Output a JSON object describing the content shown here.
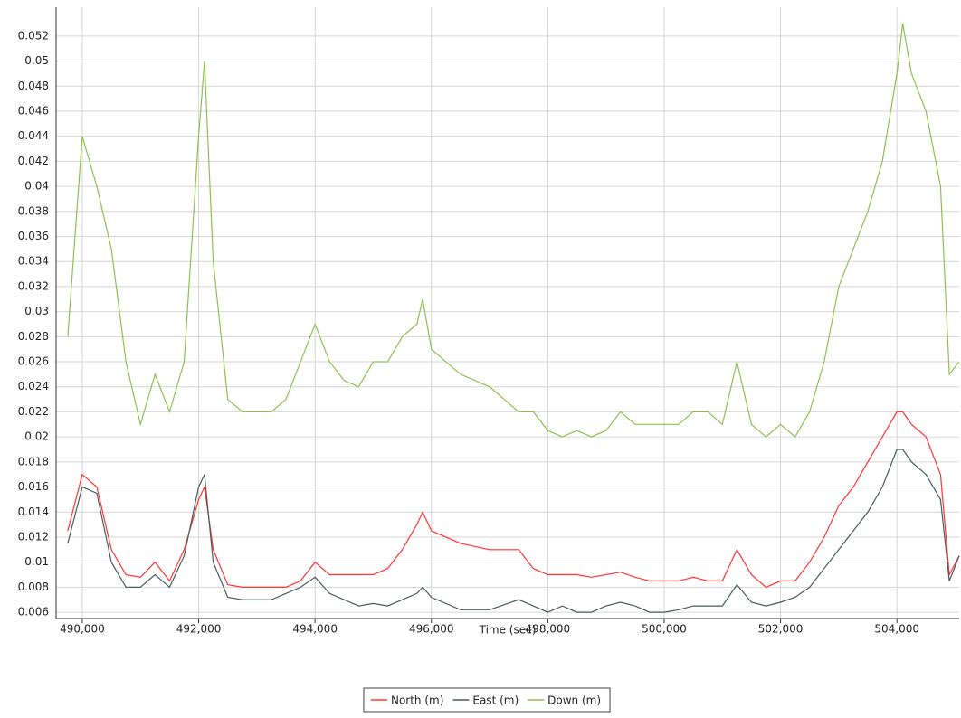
{
  "chart_data": {
    "type": "line",
    "x_label": "Time (sec)",
    "x": [
      489750,
      490000,
      490250,
      490500,
      490750,
      491000,
      491250,
      491500,
      491750,
      492000,
      492100,
      492250,
      492500,
      492750,
      493000,
      493250,
      493500,
      493750,
      494000,
      494250,
      494500,
      494750,
      495000,
      495250,
      495500,
      495750,
      495850,
      496000,
      496500,
      497000,
      497500,
      497750,
      498000,
      498250,
      498500,
      498750,
      499000,
      499250,
      499500,
      499750,
      500000,
      500250,
      500500,
      500750,
      501000,
      501250,
      501500,
      501750,
      502000,
      502250,
      502500,
      502750,
      503000,
      503250,
      503500,
      503750,
      504000,
      504100,
      504250,
      504500,
      504750,
      504900,
      505070
    ],
    "series": [
      {
        "name": "North (m)",
        "color": "#ff3333",
        "values": [
          0.0125,
          0.017,
          0.016,
          0.011,
          0.009,
          0.0088,
          0.01,
          0.0085,
          0.011,
          0.015,
          0.016,
          0.011,
          0.0082,
          0.008,
          0.008,
          0.008,
          0.008,
          0.0085,
          0.01,
          0.009,
          0.009,
          0.009,
          0.009,
          0.0095,
          0.011,
          0.013,
          0.014,
          0.0125,
          0.0115,
          0.011,
          0.011,
          0.0095,
          0.009,
          0.009,
          0.009,
          0.0088,
          0.009,
          0.0092,
          0.0088,
          0.0085,
          0.0085,
          0.0085,
          0.0088,
          0.0085,
          0.0085,
          0.011,
          0.009,
          0.008,
          0.0085,
          0.0085,
          0.01,
          0.012,
          0.0145,
          0.016,
          0.018,
          0.02,
          0.022,
          0.022,
          0.021,
          0.02,
          0.017,
          0.009,
          0.0105
        ]
      },
      {
        "name": "East (m)",
        "color": "#4a5a5e",
        "values": [
          0.0115,
          0.016,
          0.0155,
          0.01,
          0.008,
          0.008,
          0.009,
          0.008,
          0.0105,
          0.016,
          0.017,
          0.01,
          0.0072,
          0.007,
          0.007,
          0.007,
          0.0075,
          0.008,
          0.0088,
          0.0075,
          0.007,
          0.0065,
          0.0067,
          0.0065,
          0.007,
          0.0075,
          0.008,
          0.0072,
          0.0062,
          0.0062,
          0.007,
          0.0065,
          0.006,
          0.0065,
          0.006,
          0.006,
          0.0065,
          0.0068,
          0.0065,
          0.006,
          0.006,
          0.0062,
          0.0065,
          0.0065,
          0.0065,
          0.0082,
          0.0068,
          0.0065,
          0.0068,
          0.0072,
          0.008,
          0.0095,
          0.011,
          0.0125,
          0.014,
          0.016,
          0.019,
          0.019,
          0.018,
          0.017,
          0.015,
          0.0085,
          0.0105
        ]
      },
      {
        "name": "Down (m)",
        "color": "#8fbf50",
        "values": [
          0.028,
          0.044,
          0.04,
          0.035,
          0.026,
          0.021,
          0.025,
          0.022,
          0.026,
          0.044,
          0.05,
          0.034,
          0.023,
          0.022,
          0.022,
          0.022,
          0.023,
          0.026,
          0.029,
          0.026,
          0.0245,
          0.024,
          0.026,
          0.026,
          0.028,
          0.029,
          0.031,
          0.027,
          0.025,
          0.024,
          0.022,
          0.022,
          0.0205,
          0.02,
          0.0205,
          0.02,
          0.0205,
          0.022,
          0.021,
          0.021,
          0.021,
          0.021,
          0.022,
          0.022,
          0.021,
          0.026,
          0.021,
          0.02,
          0.021,
          0.02,
          0.022,
          0.026,
          0.032,
          0.035,
          0.038,
          0.042,
          0.049,
          0.053,
          0.049,
          0.046,
          0.04,
          0.025,
          0.026
        ]
      }
    ],
    "xlim": [
      489550,
      505070
    ],
    "xticks": [
      {
        "value": 490000,
        "label": "490,000"
      },
      {
        "value": 492000,
        "label": "492,000"
      },
      {
        "value": 494000,
        "label": "494,000"
      },
      {
        "value": 496000,
        "label": "496,000"
      },
      {
        "value": 498000,
        "label": "498,000"
      },
      {
        "value": 500000,
        "label": "500,000"
      },
      {
        "value": 502000,
        "label": "502,000"
      },
      {
        "value": 504000,
        "label": "504,000"
      }
    ],
    "ylim": [
      0.0055,
      0.0543
    ],
    "yticks": [
      0.006,
      0.008,
      0.01,
      0.012,
      0.014,
      0.016,
      0.018,
      0.02,
      0.022,
      0.024,
      0.026,
      0.028,
      0.03,
      0.032,
      0.034,
      0.036,
      0.038,
      0.04,
      0.042,
      0.044,
      0.046,
      0.048,
      0.05,
      0.052
    ],
    "grid": true
  }
}
